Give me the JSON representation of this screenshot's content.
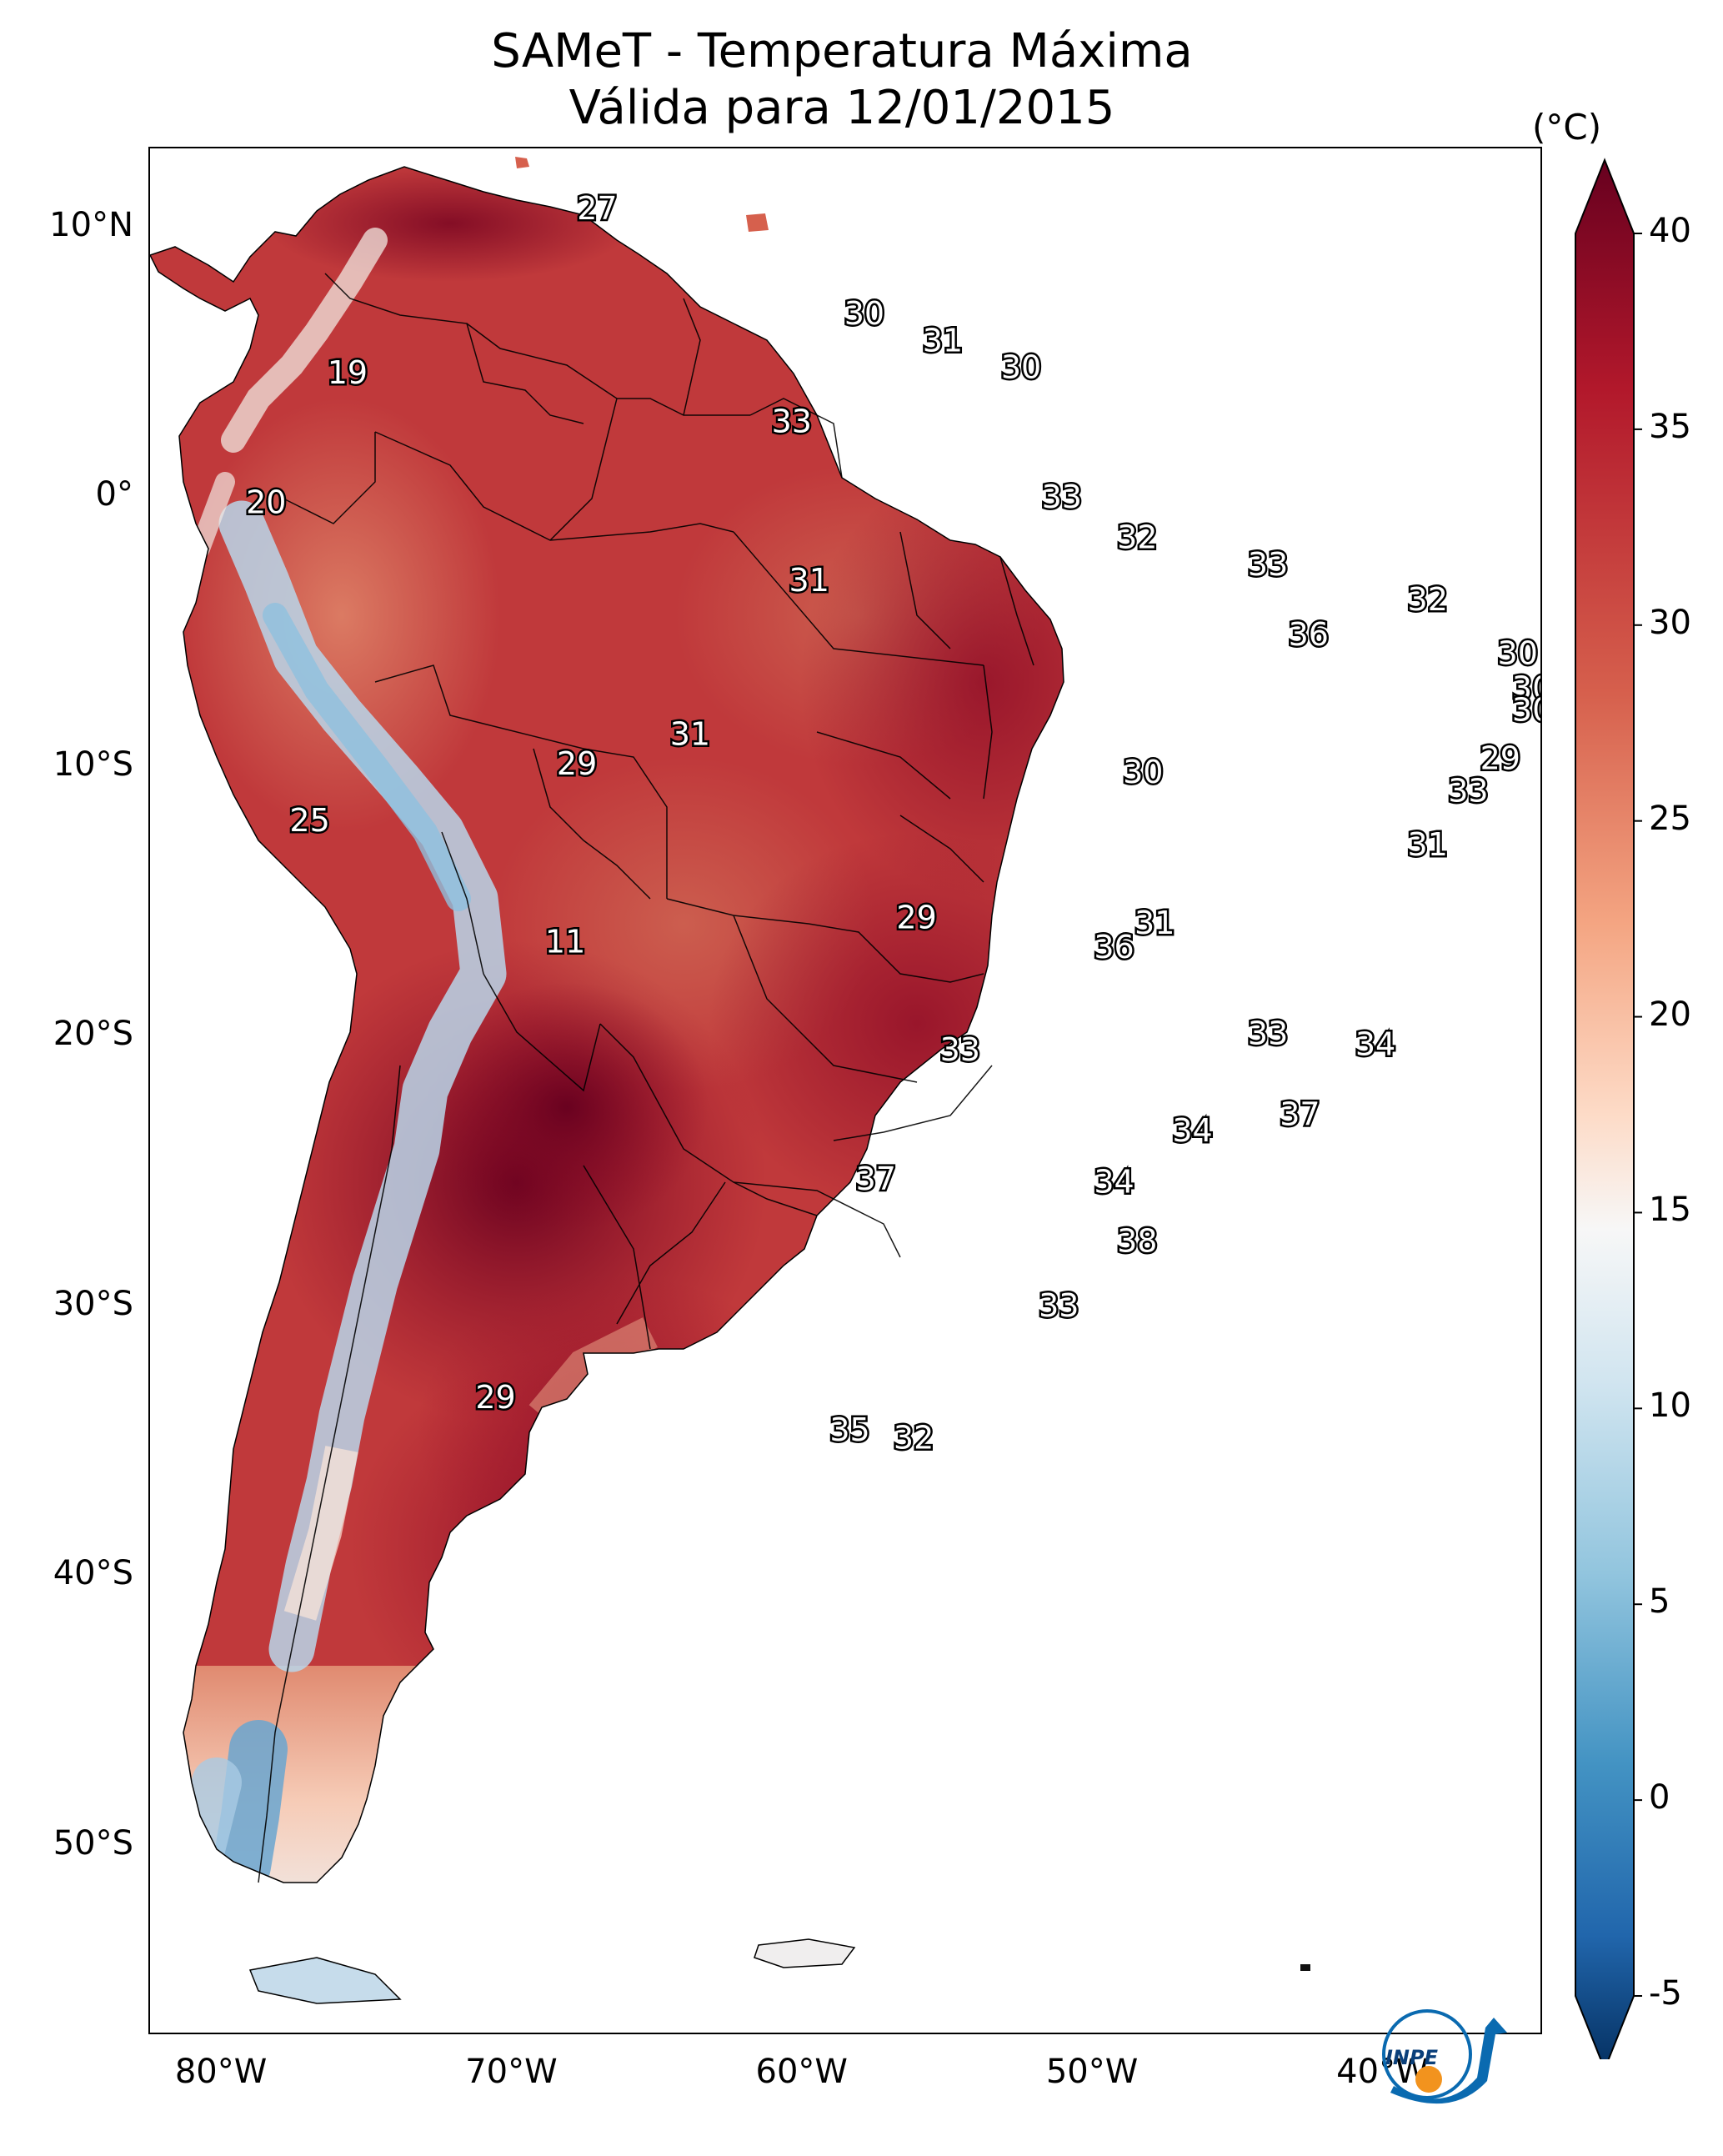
{
  "title": {
    "line1": "SAMeT - Temperatura Máxima",
    "line2": "Válida para 12/01/2015"
  },
  "axes": {
    "lat_ticks": [
      "10°N",
      "0°",
      "10°S",
      "20°S",
      "30°S",
      "40°S",
      "50°S"
    ],
    "lon_ticks": [
      "80°W",
      "70°W",
      "60°W",
      "50°W",
      "40°W"
    ],
    "extent": {
      "lon": [
        -82.5,
        -34.5
      ],
      "lat": [
        -57.0,
        13.0
      ]
    }
  },
  "colorbar": {
    "unit": "(°C)",
    "ticks": [
      "40",
      "35",
      "30",
      "25",
      "20",
      "15",
      "10",
      "5",
      "0",
      "-5"
    ],
    "range": [
      -5,
      40
    ],
    "colormap": "RdBu_r",
    "colors": {
      "cold": "#053061",
      "mid_cold": "#4393c3",
      "neutral": "#f7f7f7",
      "mid_warm": "#f4a582",
      "warm": "#b2182b",
      "hot": "#67001f"
    }
  },
  "station_labels": [
    {
      "text": "27",
      "lon": -67.1,
      "lat": 10.7
    },
    {
      "text": "19",
      "lon": -75.7,
      "lat": 4.6
    },
    {
      "text": "30",
      "lon": -57.9,
      "lat": 6.8
    },
    {
      "text": "31",
      "lon": -55.2,
      "lat": 5.8
    },
    {
      "text": "30",
      "lon": -52.5,
      "lat": 4.8
    },
    {
      "text": "33",
      "lon": -60.4,
      "lat": 2.8
    },
    {
      "text": "20",
      "lon": -78.5,
      "lat": -0.2
    },
    {
      "text": "33",
      "lon": -51.1,
      "lat": 0.0
    },
    {
      "text": "32",
      "lon": -48.5,
      "lat": -1.5
    },
    {
      "text": "31",
      "lon": -59.8,
      "lat": -3.1
    },
    {
      "text": "33",
      "lon": -44.0,
      "lat": -2.5
    },
    {
      "text": "32",
      "lon": -38.5,
      "lat": -3.8
    },
    {
      "text": "36",
      "lon": -42.6,
      "lat": -5.1
    },
    {
      "text": "30",
      "lon": -35.4,
      "lat": -5.8
    },
    {
      "text": "30",
      "lon": -34.9,
      "lat": -7.1
    },
    {
      "text": "30",
      "lon": -34.9,
      "lat": -7.9
    },
    {
      "text": "31",
      "lon": -63.9,
      "lat": -8.8
    },
    {
      "text": "29",
      "lon": -36.0,
      "lat": -9.7
    },
    {
      "text": "30",
      "lon": -48.3,
      "lat": -10.2
    },
    {
      "text": "29",
      "lon": -67.8,
      "lat": -9.9
    },
    {
      "text": "33",
      "lon": -37.1,
      "lat": -10.9
    },
    {
      "text": "25",
      "lon": -77.0,
      "lat": -12.0
    },
    {
      "text": "31",
      "lon": -38.5,
      "lat": -12.9
    },
    {
      "text": "29",
      "lon": -56.1,
      "lat": -15.6
    },
    {
      "text": "31",
      "lon": -47.9,
      "lat": -15.8
    },
    {
      "text": "36",
      "lon": -49.3,
      "lat": -16.7
    },
    {
      "text": "11",
      "lon": -68.2,
      "lat": -16.5
    },
    {
      "text": "33",
      "lon": -54.6,
      "lat": -20.5
    },
    {
      "text": "33",
      "lon": -44.0,
      "lat": -19.9
    },
    {
      "text": "34",
      "lon": -40.3,
      "lat": -20.3
    },
    {
      "text": "37",
      "lon": -42.9,
      "lat": -22.9
    },
    {
      "text": "34",
      "lon": -46.6,
      "lat": -23.5
    },
    {
      "text": "37",
      "lon": -57.5,
      "lat": -25.3
    },
    {
      "text": "34",
      "lon": -49.3,
      "lat": -25.4
    },
    {
      "text": "38",
      "lon": -48.5,
      "lat": -27.6
    },
    {
      "text": "33",
      "lon": -51.2,
      "lat": -30.0
    },
    {
      "text": "29",
      "lon": -70.6,
      "lat": -33.4
    },
    {
      "text": "35",
      "lon": -58.4,
      "lat": -34.6
    },
    {
      "text": "32",
      "lon": -56.2,
      "lat": -34.9
    }
  ]
}
